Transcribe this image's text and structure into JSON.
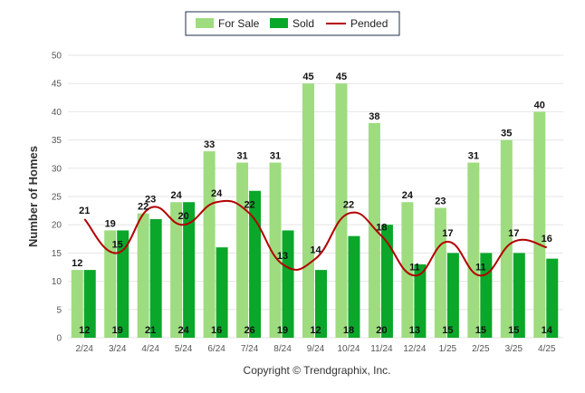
{
  "chart_data": {
    "type": "bar",
    "categories": [
      "2/24",
      "3/24",
      "4/24",
      "5/24",
      "6/24",
      "7/24",
      "8/24",
      "9/24",
      "10/24",
      "11/24",
      "12/24",
      "1/25",
      "2/25",
      "3/25",
      "4/25"
    ],
    "series": [
      {
        "name": "For Sale",
        "type": "bar",
        "color": "#9edc7f",
        "values": [
          12,
          19,
          22,
          24,
          33,
          31,
          31,
          45,
          45,
          38,
          24,
          23,
          31,
          35,
          40
        ]
      },
      {
        "name": "Sold",
        "type": "bar",
        "color": "#0aa72a",
        "values": [
          12,
          19,
          21,
          24,
          16,
          26,
          19,
          12,
          18,
          20,
          13,
          15,
          15,
          15,
          14
        ]
      },
      {
        "name": "Pended",
        "type": "line",
        "color": "#b20000",
        "values": [
          21,
          15,
          23,
          20,
          24,
          22,
          13,
          14,
          22,
          18,
          11,
          17,
          11,
          17,
          16
        ]
      }
    ],
    "ylabel": "Number of Homes",
    "xlabel": "",
    "ylim": [
      0,
      50
    ],
    "yticks": [
      0,
      5,
      10,
      15,
      20,
      25,
      30,
      35,
      40,
      45,
      50
    ],
    "grid": true,
    "legend_position": "top-center",
    "credit": "Copyright © Trendgraphix, Inc."
  }
}
